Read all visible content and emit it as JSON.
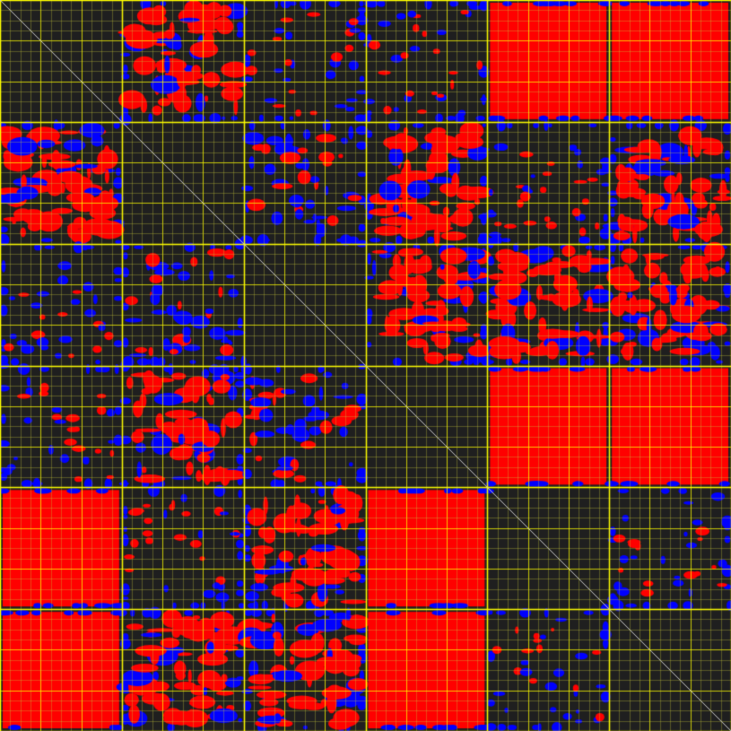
{
  "matrix": {
    "block_count": 6,
    "colors": {
      "background": "#1f1f1f",
      "positive": "#ff0000",
      "negative": "#0000ff",
      "grid_major": "#ffff00",
      "grid_minor": "#8c8c2a",
      "diagonal": "#c8c8c8"
    },
    "block_density": [
      [
        "diag",
        "dense",
        "sparse",
        "sparse",
        "full",
        "full"
      ],
      [
        "dense",
        "diag",
        "mixed",
        "dense",
        "sparse",
        "dense"
      ],
      [
        "sparse",
        "mixed",
        "diag",
        "dense",
        "dense",
        "dense"
      ],
      [
        "sparse",
        "dense",
        "mixed",
        "diag",
        "full",
        "full"
      ],
      [
        "full",
        "sparse",
        "dense",
        "full",
        "diag",
        "sparse"
      ],
      [
        "full",
        "dense",
        "dense",
        "full",
        "sparse",
        "diag"
      ]
    ]
  }
}
